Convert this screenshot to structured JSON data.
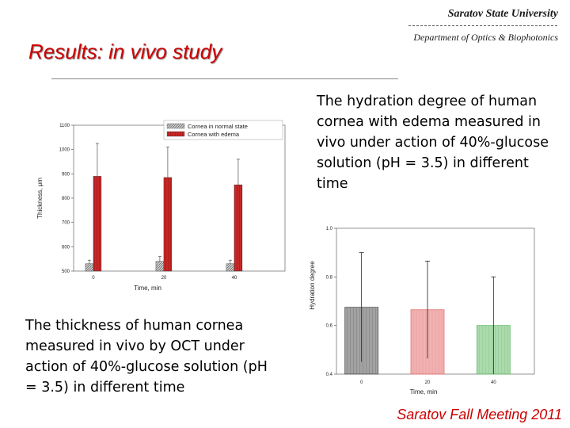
{
  "header": {
    "university": "Saratov State University",
    "department": "Department of Optics & Biophotonics",
    "title": "Results: in vivo study"
  },
  "text_hydration": "The hydration degree of human cornea with edema measured in vivo under action of 40%-glucose solution (pH = 3.5) in different time",
  "text_thickness": "The thickness of human cornea measured in vivo by OCT under action of 40%-glucose solution (pH = 3.5) in different time",
  "footer": "Saratov Fall Meeting 2011",
  "colors": {
    "title": "#cc0000",
    "edema": "#c62828",
    "normal": "#b0b0b0"
  },
  "chart_data": [
    {
      "type": "bar",
      "categories": [
        "0",
        "20",
        "40"
      ],
      "xlabel": "Time, min",
      "ylabel": "Thickness, μm",
      "ylim": [
        500,
        1100
      ],
      "yticks": [
        "500",
        "600",
        "700",
        "800",
        "900",
        "1000",
        "1100"
      ],
      "legend_position": "top-right",
      "series": [
        {
          "name": "Cornea in normal state",
          "values": [
            530,
            540,
            530
          ],
          "errors": [
            15,
            20,
            15
          ],
          "color": "#b0b0b0"
        },
        {
          "name": "Cornea with edema",
          "values": [
            890,
            885,
            855
          ],
          "errors": [
            135,
            125,
            105
          ],
          "color": "#c62828"
        }
      ]
    },
    {
      "type": "bar",
      "categories": [
        "0",
        "20",
        "40"
      ],
      "xlabel": "Time, min",
      "ylabel": "Hydration degree",
      "ylim": [
        0.4,
        1.0
      ],
      "yticks": [
        "0.4",
        "0.6",
        "0.8",
        "1.0"
      ],
      "values": [
        0.675,
        0.665,
        0.6
      ],
      "errors": [
        0.225,
        0.2,
        0.2
      ],
      "colors": [
        "#555555",
        "#e57373",
        "#66bb6a"
      ]
    }
  ]
}
